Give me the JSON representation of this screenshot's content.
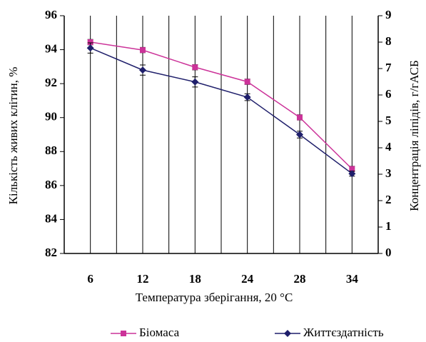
{
  "chart_data": {
    "type": "line",
    "categories": [
      "6",
      "12",
      "18",
      "24",
      "28",
      "34"
    ],
    "x_label": "Температура зберігання, 20 °C",
    "y_label": "Кількість живих клітин, %",
    "y2_label": "Концентрація ліпідів, г/гАСБ",
    "ylim": [
      82,
      96
    ],
    "yticks": [
      82,
      84,
      86,
      88,
      90,
      92,
      94,
      96
    ],
    "y2lim": [
      0,
      9
    ],
    "y2ticks": [
      0,
      1,
      2,
      3,
      4,
      5,
      6,
      7,
      8,
      9
    ],
    "grid": true,
    "legend": "bottom",
    "series": [
      {
        "name": "Біомаса",
        "color": "#cc3399",
        "axis": "y2",
        "values": [
          8.0,
          7.7,
          7.05,
          6.5,
          5.15,
          3.2
        ],
        "errors": [
          0.1,
          0.1,
          0.1,
          0.1,
          0.1,
          0.1
        ]
      },
      {
        "name": "Життєздатність",
        "color": "#1f1f6b",
        "axis": "y",
        "values": [
          94.1,
          92.8,
          92.1,
          91.2,
          89.0,
          86.7
        ],
        "errors": [
          0.3,
          0.3,
          0.3,
          0.2,
          0.2,
          0.15
        ]
      }
    ]
  }
}
